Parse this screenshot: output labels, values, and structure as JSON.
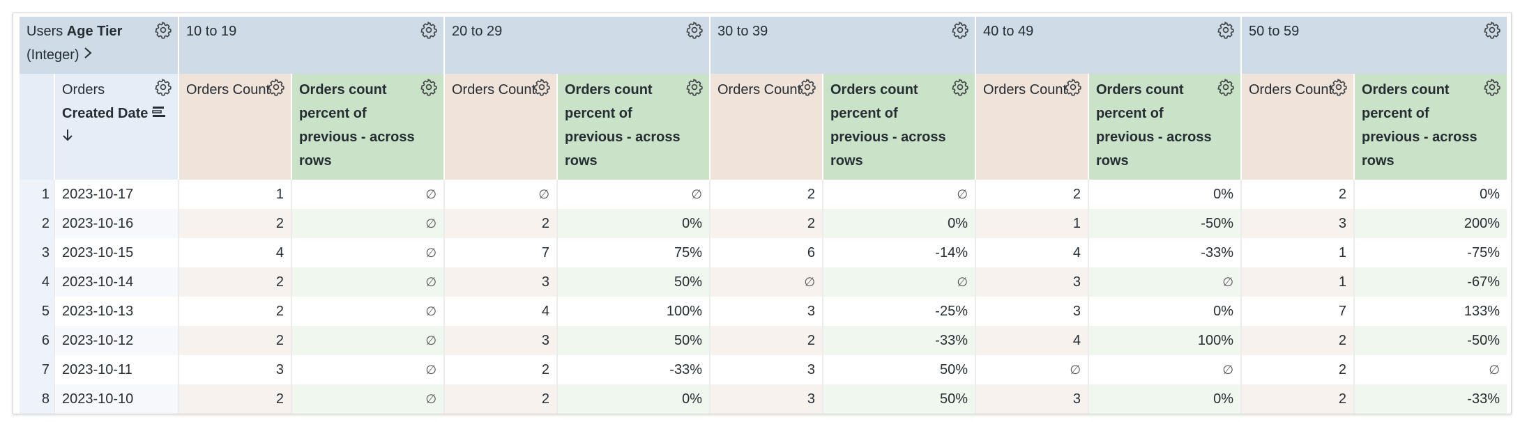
{
  "pivot_header": {
    "prefix": "Users ",
    "bold": "Age Tier",
    "suffix": "(Integer)"
  },
  "dimension_header": {
    "prefix": "Orders",
    "bold": "Created Date"
  },
  "measure_count_label": "Orders Count",
  "measure_pct_label": "Orders count percent of previous - across rows",
  "groups": [
    "10 to 19",
    "20 to 29",
    "30 to 39",
    "40 to 49",
    "50 to 59"
  ],
  "rows": [
    {
      "index": "1",
      "date": "2023-10-17",
      "values": [
        [
          "1",
          "∅"
        ],
        [
          "∅",
          "∅"
        ],
        [
          "2",
          "∅"
        ],
        [
          "2",
          "0%"
        ],
        [
          "2",
          "0%"
        ]
      ]
    },
    {
      "index": "2",
      "date": "2023-10-16",
      "values": [
        [
          "2",
          "∅"
        ],
        [
          "2",
          "0%"
        ],
        [
          "2",
          "0%"
        ],
        [
          "1",
          "-50%"
        ],
        [
          "3",
          "200%"
        ]
      ]
    },
    {
      "index": "3",
      "date": "2023-10-15",
      "values": [
        [
          "4",
          "∅"
        ],
        [
          "7",
          "75%"
        ],
        [
          "6",
          "-14%"
        ],
        [
          "4",
          "-33%"
        ],
        [
          "1",
          "-75%"
        ]
      ]
    },
    {
      "index": "4",
      "date": "2023-10-14",
      "values": [
        [
          "2",
          "∅"
        ],
        [
          "3",
          "50%"
        ],
        [
          "∅",
          "∅"
        ],
        [
          "3",
          "∅"
        ],
        [
          "1",
          "-67%"
        ]
      ]
    },
    {
      "index": "5",
      "date": "2023-10-13",
      "values": [
        [
          "2",
          "∅"
        ],
        [
          "4",
          "100%"
        ],
        [
          "3",
          "-25%"
        ],
        [
          "3",
          "0%"
        ],
        [
          "7",
          "133%"
        ]
      ]
    },
    {
      "index": "6",
      "date": "2023-10-12",
      "values": [
        [
          "2",
          "∅"
        ],
        [
          "3",
          "50%"
        ],
        [
          "2",
          "-33%"
        ],
        [
          "4",
          "100%"
        ],
        [
          "2",
          "-50%"
        ]
      ]
    },
    {
      "index": "7",
      "date": "2023-10-11",
      "values": [
        [
          "3",
          "∅"
        ],
        [
          "2",
          "-33%"
        ],
        [
          "3",
          "50%"
        ],
        [
          "∅",
          "∅"
        ],
        [
          "2",
          "∅"
        ]
      ]
    },
    {
      "index": "8",
      "date": "2023-10-10",
      "values": [
        [
          "2",
          "∅"
        ],
        [
          "2",
          "0%"
        ],
        [
          "3",
          "50%"
        ],
        [
          "3",
          "0%"
        ],
        [
          "2",
          "-33%"
        ]
      ]
    }
  ],
  "colors": {
    "pivot_header": "#cfdbe6",
    "dimension_header": "#e5eef7",
    "count_header": "#f0e3d9",
    "pct_header": "#c9e2c8",
    "count_stripe": "#f8f2ef",
    "pct_stripe": "#eff7ef"
  },
  "icons": {
    "settings": "gear-icon",
    "expand": "chevron-right-icon",
    "sort": "sort-desc-arrow-icon",
    "field_type": "dimension-group-icon"
  }
}
